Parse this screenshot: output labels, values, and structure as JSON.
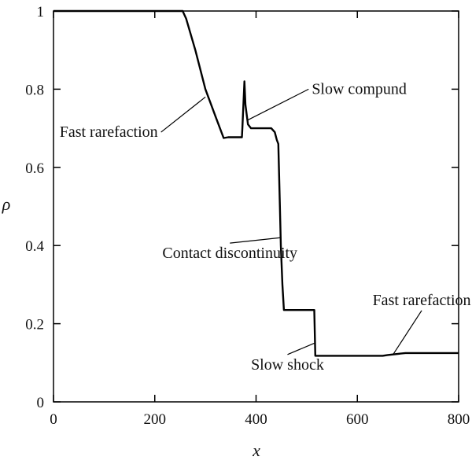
{
  "chart_data": {
    "type": "line",
    "title": "",
    "xlabel": "x",
    "ylabel": "ρ",
    "xlim": [
      0,
      800
    ],
    "ylim": [
      0,
      1
    ],
    "grid": false,
    "x_ticks": [
      0,
      200,
      400,
      600,
      800
    ],
    "y_ticks": [
      0,
      0.2,
      0.4,
      0.6,
      0.8,
      1
    ],
    "x_tick_labels": [
      "0",
      "200",
      "400",
      "600",
      "800"
    ],
    "y_tick_labels": [
      "0",
      "0.2",
      "0.4",
      "0.6",
      "0.8",
      "1"
    ],
    "series": [
      {
        "color": "#000000",
        "points": [
          [
            0,
            1.0
          ],
          [
            255,
            1.0
          ],
          [
            262,
            0.98
          ],
          [
            280,
            0.9
          ],
          [
            300,
            0.8
          ],
          [
            320,
            0.73
          ],
          [
            336,
            0.675
          ],
          [
            345,
            0.677
          ],
          [
            372,
            0.677
          ],
          [
            373,
            0.7
          ],
          [
            375,
            0.76
          ],
          [
            377,
            0.82
          ],
          [
            379,
            0.76
          ],
          [
            384,
            0.71
          ],
          [
            390,
            0.7
          ],
          [
            430,
            0.7
          ],
          [
            437,
            0.69
          ],
          [
            441,
            0.67
          ],
          [
            444,
            0.66
          ],
          [
            447,
            0.5
          ],
          [
            449,
            0.4
          ],
          [
            452,
            0.3
          ],
          [
            455,
            0.235
          ],
          [
            515,
            0.235
          ],
          [
            517,
            0.118
          ],
          [
            650,
            0.118
          ],
          [
            660,
            0.12
          ],
          [
            695,
            0.125
          ],
          [
            800,
            0.125
          ]
        ]
      }
    ],
    "annotations": [
      {
        "text": "Fast rarefaction",
        "x": 300,
        "y": 0.78,
        "label_x": 12,
        "label_y": 0.69
      },
      {
        "text": "Slow compund",
        "x": 382,
        "y": 0.72,
        "label_x": 510,
        "label_y": 0.8
      },
      {
        "text": "Contact discontinuity",
        "x": 448,
        "y": 0.42,
        "label_x": 215,
        "label_y": 0.38
      },
      {
        "text": "Slow shock",
        "x": 515,
        "y": 0.15,
        "label_x": 390,
        "label_y": 0.095
      },
      {
        "text": "Fast rarefaction",
        "x": 670,
        "y": 0.12,
        "label_x": 630,
        "label_y": 0.26
      }
    ]
  }
}
